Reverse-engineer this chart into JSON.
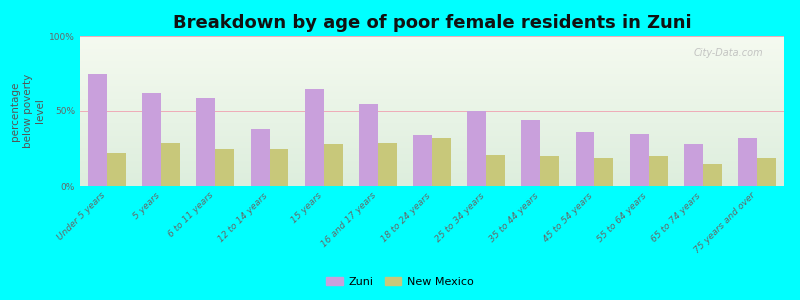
{
  "title": "Breakdown by age of poor female residents in Zuni",
  "ylabel": "percentage\nbelow poverty\nlevel",
  "categories": [
    "Under 5 years",
    "5 years",
    "6 to 11 years",
    "12 to 14 years",
    "15 years",
    "16 and 17 years",
    "18 to 24 years",
    "25 to 34 years",
    "35 to 44 years",
    "45 to 54 years",
    "55 to 64 years",
    "65 to 74 years",
    "75 years and over"
  ],
  "zuni_values": [
    75,
    62,
    59,
    38,
    65,
    55,
    34,
    50,
    44,
    36,
    35,
    28,
    32
  ],
  "nm_values": [
    22,
    29,
    25,
    25,
    28,
    29,
    32,
    21,
    20,
    19,
    20,
    15,
    19
  ],
  "zuni_color": "#c9a0dc",
  "nm_color": "#c8c87a",
  "plot_bg_color": "#eef5e8",
  "bg_color": "#00ffff",
  "ylim": [
    0,
    100
  ],
  "ytick_labels": [
    "0%",
    "50%",
    "100%"
  ],
  "bar_width": 0.35,
  "title_fontsize": 13,
  "axis_label_fontsize": 7.5,
  "tick_fontsize": 6.5,
  "legend_labels": [
    "Zuni",
    "New Mexico"
  ],
  "watermark": "City-Data.com"
}
